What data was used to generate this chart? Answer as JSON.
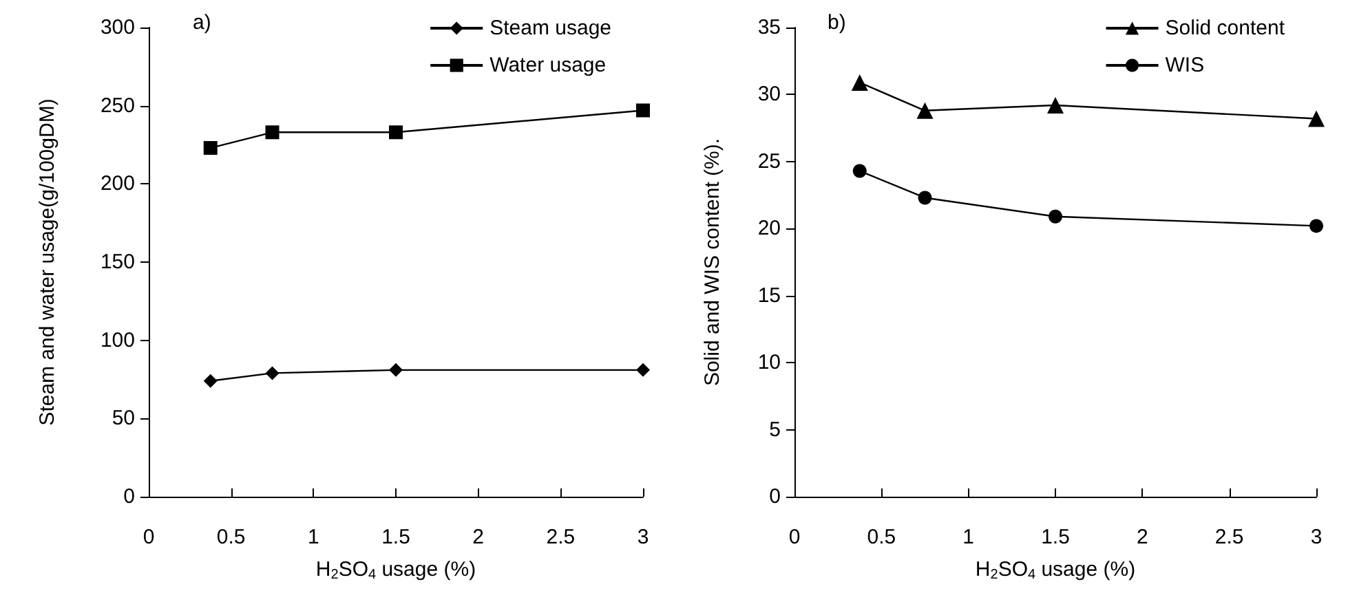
{
  "chart_data": [
    {
      "type": "line",
      "xlabel": "H$_{2}$SO$_{4}$ usage (%)",
      "ylabel": "Steam and water usage(g/100gDM)",
      "annotations": [
        "a)"
      ],
      "x": [
        0.375,
        0.75,
        1.5,
        3
      ],
      "xlim": [
        0,
        3
      ],
      "xticks": [
        0,
        0.5,
        1,
        1.5,
        2,
        2.5,
        3
      ],
      "ylim": [
        0,
        300
      ],
      "yticks": [
        0,
        50,
        100,
        150,
        200,
        250,
        300
      ],
      "grid": false,
      "legend": "top right",
      "series": [
        {
          "name": "Steam usage",
          "color": "#000000",
          "marker": "diamond",
          "values": [
            74,
            79,
            81,
            81
          ]
        },
        {
          "name": "Water usage",
          "color": "#000000",
          "marker": "square",
          "values": [
            223,
            233,
            233,
            247
          ]
        }
      ]
    },
    {
      "type": "line",
      "xlabel": "H$_{2}$SO$_{4}$ usage (%)",
      "ylabel": "Solid and WIS content (%).",
      "annotations": [
        "b)"
      ],
      "x": [
        0.375,
        0.75,
        1.5,
        3
      ],
      "xlim": [
        0,
        3
      ],
      "xticks": [
        0,
        0.5,
        1,
        1.5,
        2,
        2.5,
        3
      ],
      "ylim": [
        0,
        35
      ],
      "yticks": [
        0,
        5,
        10,
        15,
        20,
        25,
        30,
        35
      ],
      "grid": false,
      "legend": "top right",
      "series": [
        {
          "name": "Solid content",
          "color": "#000000",
          "marker": "triangle",
          "values": [
            30.9,
            28.8,
            29.2,
            28.2
          ]
        },
        {
          "name": "WIS",
          "color": "#000000",
          "marker": "circle",
          "values": [
            24.3,
            22.3,
            20.9,
            20.2
          ]
        }
      ]
    }
  ]
}
